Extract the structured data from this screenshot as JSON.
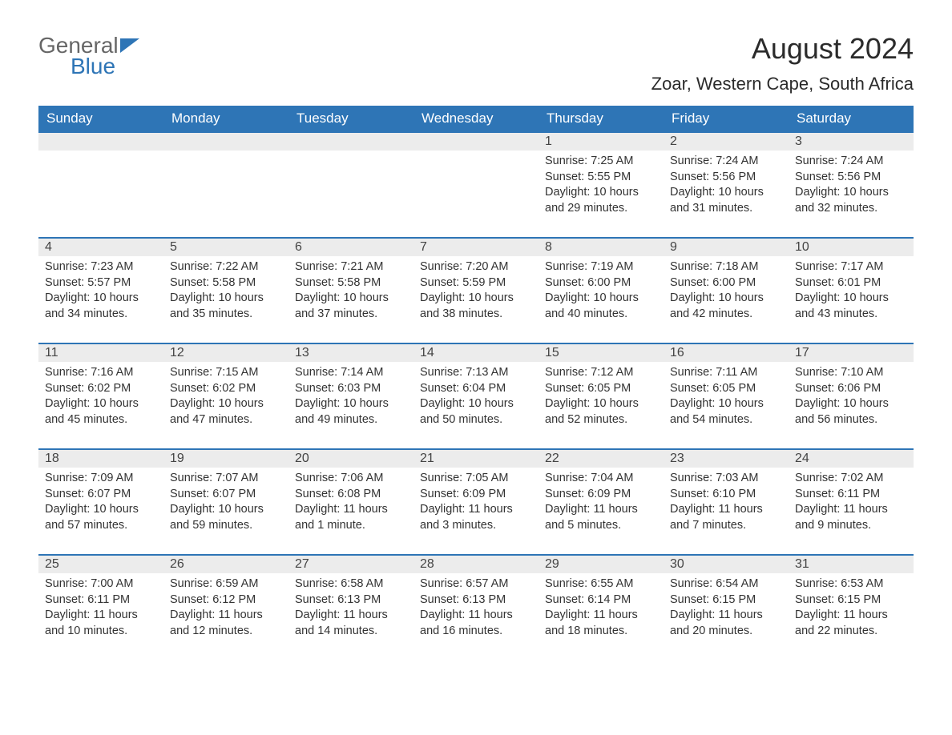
{
  "logo": {
    "general": "General",
    "blue": "Blue"
  },
  "title": "August 2024",
  "location": "Zoar, Western Cape, South Africa",
  "weekdays": [
    "Sunday",
    "Monday",
    "Tuesday",
    "Wednesday",
    "Thursday",
    "Friday",
    "Saturday"
  ],
  "colors": {
    "header_bg": "#2e75b6",
    "daynum_bg": "#ececec",
    "border": "#2e75b6"
  },
  "weeks": [
    [
      {
        "n": "",
        "sr": "",
        "ss": "",
        "dl": ""
      },
      {
        "n": "",
        "sr": "",
        "ss": "",
        "dl": ""
      },
      {
        "n": "",
        "sr": "",
        "ss": "",
        "dl": ""
      },
      {
        "n": "",
        "sr": "",
        "ss": "",
        "dl": ""
      },
      {
        "n": "1",
        "sr": "Sunrise: 7:25 AM",
        "ss": "Sunset: 5:55 PM",
        "dl": "Daylight: 10 hours and 29 minutes."
      },
      {
        "n": "2",
        "sr": "Sunrise: 7:24 AM",
        "ss": "Sunset: 5:56 PM",
        "dl": "Daylight: 10 hours and 31 minutes."
      },
      {
        "n": "3",
        "sr": "Sunrise: 7:24 AM",
        "ss": "Sunset: 5:56 PM",
        "dl": "Daylight: 10 hours and 32 minutes."
      }
    ],
    [
      {
        "n": "4",
        "sr": "Sunrise: 7:23 AM",
        "ss": "Sunset: 5:57 PM",
        "dl": "Daylight: 10 hours and 34 minutes."
      },
      {
        "n": "5",
        "sr": "Sunrise: 7:22 AM",
        "ss": "Sunset: 5:58 PM",
        "dl": "Daylight: 10 hours and 35 minutes."
      },
      {
        "n": "6",
        "sr": "Sunrise: 7:21 AM",
        "ss": "Sunset: 5:58 PM",
        "dl": "Daylight: 10 hours and 37 minutes."
      },
      {
        "n": "7",
        "sr": "Sunrise: 7:20 AM",
        "ss": "Sunset: 5:59 PM",
        "dl": "Daylight: 10 hours and 38 minutes."
      },
      {
        "n": "8",
        "sr": "Sunrise: 7:19 AM",
        "ss": "Sunset: 6:00 PM",
        "dl": "Daylight: 10 hours and 40 minutes."
      },
      {
        "n": "9",
        "sr": "Sunrise: 7:18 AM",
        "ss": "Sunset: 6:00 PM",
        "dl": "Daylight: 10 hours and 42 minutes."
      },
      {
        "n": "10",
        "sr": "Sunrise: 7:17 AM",
        "ss": "Sunset: 6:01 PM",
        "dl": "Daylight: 10 hours and 43 minutes."
      }
    ],
    [
      {
        "n": "11",
        "sr": "Sunrise: 7:16 AM",
        "ss": "Sunset: 6:02 PM",
        "dl": "Daylight: 10 hours and 45 minutes."
      },
      {
        "n": "12",
        "sr": "Sunrise: 7:15 AM",
        "ss": "Sunset: 6:02 PM",
        "dl": "Daylight: 10 hours and 47 minutes."
      },
      {
        "n": "13",
        "sr": "Sunrise: 7:14 AM",
        "ss": "Sunset: 6:03 PM",
        "dl": "Daylight: 10 hours and 49 minutes."
      },
      {
        "n": "14",
        "sr": "Sunrise: 7:13 AM",
        "ss": "Sunset: 6:04 PM",
        "dl": "Daylight: 10 hours and 50 minutes."
      },
      {
        "n": "15",
        "sr": "Sunrise: 7:12 AM",
        "ss": "Sunset: 6:05 PM",
        "dl": "Daylight: 10 hours and 52 minutes."
      },
      {
        "n": "16",
        "sr": "Sunrise: 7:11 AM",
        "ss": "Sunset: 6:05 PM",
        "dl": "Daylight: 10 hours and 54 minutes."
      },
      {
        "n": "17",
        "sr": "Sunrise: 7:10 AM",
        "ss": "Sunset: 6:06 PM",
        "dl": "Daylight: 10 hours and 56 minutes."
      }
    ],
    [
      {
        "n": "18",
        "sr": "Sunrise: 7:09 AM",
        "ss": "Sunset: 6:07 PM",
        "dl": "Daylight: 10 hours and 57 minutes."
      },
      {
        "n": "19",
        "sr": "Sunrise: 7:07 AM",
        "ss": "Sunset: 6:07 PM",
        "dl": "Daylight: 10 hours and 59 minutes."
      },
      {
        "n": "20",
        "sr": "Sunrise: 7:06 AM",
        "ss": "Sunset: 6:08 PM",
        "dl": "Daylight: 11 hours and 1 minute."
      },
      {
        "n": "21",
        "sr": "Sunrise: 7:05 AM",
        "ss": "Sunset: 6:09 PM",
        "dl": "Daylight: 11 hours and 3 minutes."
      },
      {
        "n": "22",
        "sr": "Sunrise: 7:04 AM",
        "ss": "Sunset: 6:09 PM",
        "dl": "Daylight: 11 hours and 5 minutes."
      },
      {
        "n": "23",
        "sr": "Sunrise: 7:03 AM",
        "ss": "Sunset: 6:10 PM",
        "dl": "Daylight: 11 hours and 7 minutes."
      },
      {
        "n": "24",
        "sr": "Sunrise: 7:02 AM",
        "ss": "Sunset: 6:11 PM",
        "dl": "Daylight: 11 hours and 9 minutes."
      }
    ],
    [
      {
        "n": "25",
        "sr": "Sunrise: 7:00 AM",
        "ss": "Sunset: 6:11 PM",
        "dl": "Daylight: 11 hours and 10 minutes."
      },
      {
        "n": "26",
        "sr": "Sunrise: 6:59 AM",
        "ss": "Sunset: 6:12 PM",
        "dl": "Daylight: 11 hours and 12 minutes."
      },
      {
        "n": "27",
        "sr": "Sunrise: 6:58 AM",
        "ss": "Sunset: 6:13 PM",
        "dl": "Daylight: 11 hours and 14 minutes."
      },
      {
        "n": "28",
        "sr": "Sunrise: 6:57 AM",
        "ss": "Sunset: 6:13 PM",
        "dl": "Daylight: 11 hours and 16 minutes."
      },
      {
        "n": "29",
        "sr": "Sunrise: 6:55 AM",
        "ss": "Sunset: 6:14 PM",
        "dl": "Daylight: 11 hours and 18 minutes."
      },
      {
        "n": "30",
        "sr": "Sunrise: 6:54 AM",
        "ss": "Sunset: 6:15 PM",
        "dl": "Daylight: 11 hours and 20 minutes."
      },
      {
        "n": "31",
        "sr": "Sunrise: 6:53 AM",
        "ss": "Sunset: 6:15 PM",
        "dl": "Daylight: 11 hours and 22 minutes."
      }
    ]
  ]
}
